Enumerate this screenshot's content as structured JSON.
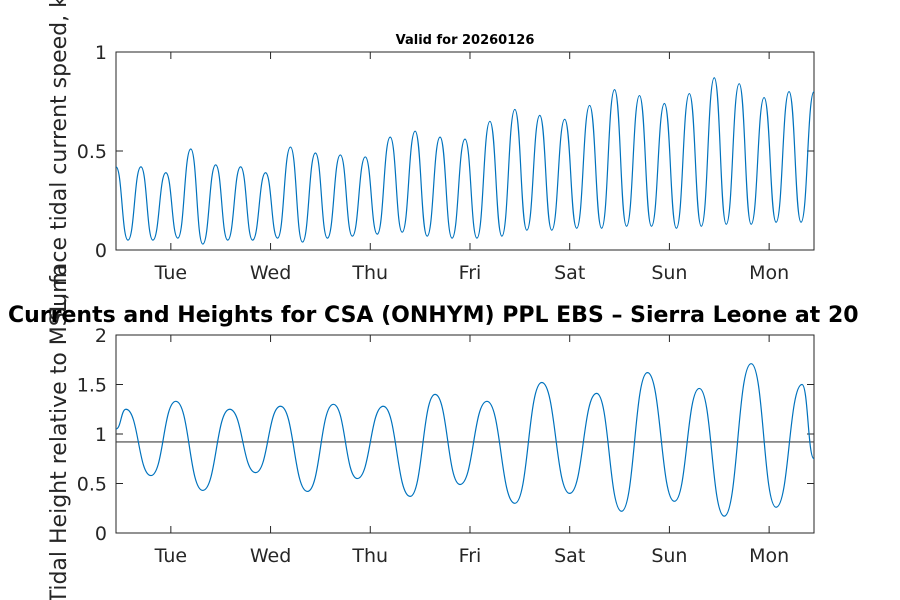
{
  "figure_title": "Currents and Heights for CSA (ONHYM) PPL EBS  – Sierra Leone at 20",
  "chart_data": [
    {
      "type": "line",
      "title": "Valid for 20260126",
      "xlabel": "",
      "ylabel": "Surface tidal current speed, kn",
      "ylim": [
        0,
        1
      ],
      "yticks": [
        {
          "v": 0,
          "label": "0"
        },
        {
          "v": 0.5,
          "label": "0.5"
        },
        {
          "v": 1,
          "label": "1"
        }
      ],
      "xlim": [
        0,
        7
      ],
      "xticks": [
        {
          "v": 0.55,
          "label": "Tue"
        },
        {
          "v": 1.55,
          "label": "Wed"
        },
        {
          "v": 2.55,
          "label": "Thu"
        },
        {
          "v": 3.55,
          "label": "Fri"
        },
        {
          "v": 4.55,
          "label": "Sat"
        },
        {
          "v": 5.55,
          "label": "Sun"
        },
        {
          "v": 6.55,
          "label": "Mon"
        }
      ],
      "series": [
        {
          "name": "current speed",
          "color": "#0072BD",
          "x": [
            0,
            0.12,
            0.25,
            0.37,
            0.5,
            0.62,
            0.75,
            0.87,
            1,
            1.12,
            1.25,
            1.37,
            1.5,
            1.62,
            1.75,
            1.87,
            2,
            2.12,
            2.25,
            2.37,
            2.5,
            2.62,
            2.75,
            2.87,
            3,
            3.12,
            3.25,
            3.37,
            3.5,
            3.62,
            3.75,
            3.87,
            4,
            4.12,
            4.25,
            4.37,
            4.5,
            4.62,
            4.75,
            4.87,
            5,
            5.12,
            5.25,
            5.37,
            5.5,
            5.62,
            5.75,
            5.87,
            6,
            6.12,
            6.25,
            6.37,
            6.5,
            6.62,
            6.75,
            6.87,
            7
          ],
          "values": [
            0.42,
            0.05,
            0.42,
            0.05,
            0.39,
            0.06,
            0.51,
            0.03,
            0.43,
            0.05,
            0.42,
            0.05,
            0.39,
            0.06,
            0.52,
            0.04,
            0.49,
            0.06,
            0.48,
            0.07,
            0.47,
            0.08,
            0.57,
            0.09,
            0.6,
            0.07,
            0.57,
            0.06,
            0.56,
            0.06,
            0.65,
            0.07,
            0.71,
            0.1,
            0.68,
            0.1,
            0.66,
            0.11,
            0.73,
            0.11,
            0.81,
            0.12,
            0.78,
            0.12,
            0.74,
            0.11,
            0.79,
            0.12,
            0.87,
            0.13,
            0.84,
            0.13,
            0.77,
            0.14,
            0.8,
            0.14,
            0.8
          ]
        }
      ]
    },
    {
      "type": "line",
      "title": "",
      "xlabel": "",
      "ylabel": "Tidal Height relative to MSL, m",
      "ylim": [
        0,
        2
      ],
      "yticks": [
        {
          "v": 0,
          "label": "0"
        },
        {
          "v": 0.5,
          "label": "0.5"
        },
        {
          "v": 1,
          "label": "1"
        },
        {
          "v": 1.5,
          "label": "1.5"
        },
        {
          "v": 2,
          "label": "2"
        }
      ],
      "xlim": [
        0,
        7
      ],
      "xticks": [
        {
          "v": 0.55,
          "label": "Tue"
        },
        {
          "v": 1.55,
          "label": "Wed"
        },
        {
          "v": 2.55,
          "label": "Thu"
        },
        {
          "v": 3.55,
          "label": "Fri"
        },
        {
          "v": 4.55,
          "label": "Sat"
        },
        {
          "v": 5.55,
          "label": "Sun"
        },
        {
          "v": 6.55,
          "label": "Mon"
        }
      ],
      "reference_line": {
        "y": 0.92,
        "color": "#404040"
      },
      "series": [
        {
          "name": "tidal height",
          "color": "#0072BD",
          "x": [
            0,
            0.1,
            0.35,
            0.6,
            0.87,
            1.14,
            1.4,
            1.65,
            1.92,
            2.18,
            2.42,
            2.68,
            2.95,
            3.2,
            3.45,
            3.72,
            4.0,
            4.27,
            4.55,
            4.82,
            5.07,
            5.33,
            5.6,
            5.85,
            6.1,
            6.37,
            6.62,
            6.88,
            7
          ],
          "values": [
            1.05,
            1.25,
            0.58,
            1.33,
            0.43,
            1.25,
            0.61,
            1.28,
            0.42,
            1.3,
            0.55,
            1.28,
            0.37,
            1.4,
            0.49,
            1.33,
            0.3,
            1.52,
            0.4,
            1.41,
            0.22,
            1.62,
            0.32,
            1.46,
            0.17,
            1.71,
            0.26,
            1.5,
            0.75
          ]
        }
      ]
    }
  ]
}
